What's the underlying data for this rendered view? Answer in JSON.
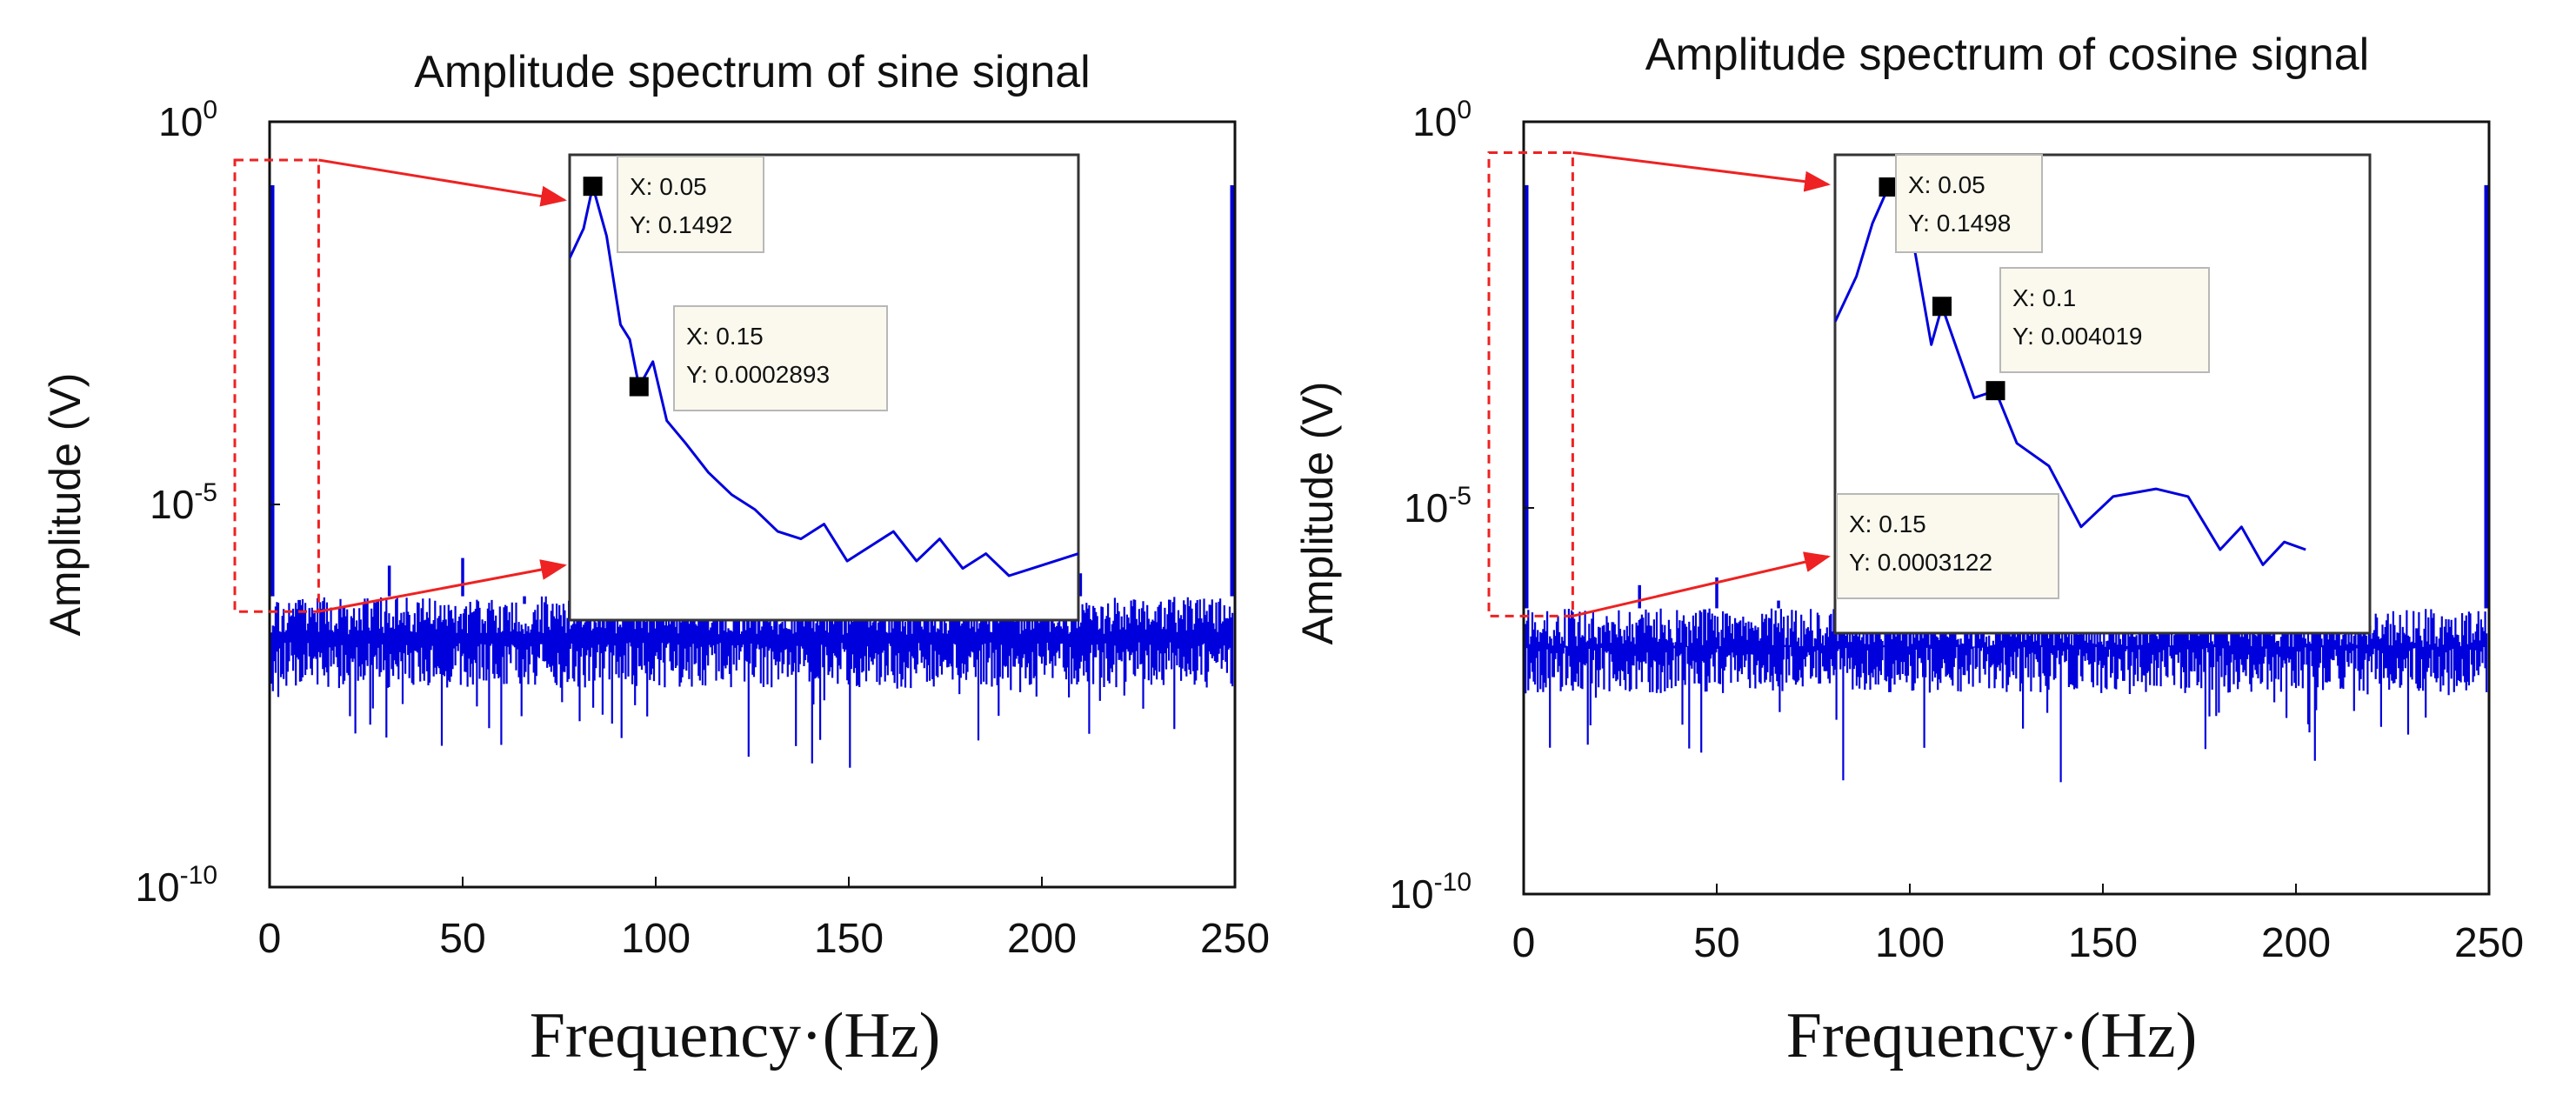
{
  "colors": {
    "spectrum": "#0000dd",
    "zoom_box": "#ee2222",
    "arrow": "#ee2222",
    "datatip_bg": "#fbf9ee",
    "datatip_border": "#b8b8b8",
    "marker": "#000000",
    "axes": "#111111"
  },
  "chart_data": [
    {
      "type": "line",
      "title": "Amplitude spectrum of sine signal",
      "xlabel": "Frequency·(Hz)",
      "ylabel": "Amplitude (V)",
      "xlim": [
        0,
        250
      ],
      "ylim_log10": [
        -10,
        0
      ],
      "yscale": "log",
      "xticks": [
        "0",
        "50",
        "100",
        "150",
        "200",
        "250"
      ],
      "yticks": [
        {
          "base": "10",
          "exp": "0",
          "log10": 0
        },
        {
          "base": "10",
          "exp": "-5",
          "log10": -5
        },
        {
          "base": "10",
          "exp": "-10",
          "log10": -10
        }
      ],
      "spectrum": {
        "peaks": [
          {
            "x": 0.05,
            "log10y": -0.83
          },
          {
            "x": 249.95,
            "log10y": -0.83
          }
        ],
        "spikes": [
          {
            "x": 31,
            "log10y": -5.8
          },
          {
            "x": 50,
            "log10y": -5.7
          },
          {
            "x": 66,
            "log10y": -6.3
          },
          {
            "x": 100,
            "log10y": -5.9
          },
          {
            "x": 200,
            "log10y": -6.2
          },
          {
            "x": 210,
            "log10y": -5.9
          }
        ],
        "noise_band_log10": [
          -7.4,
          -6.2
        ]
      },
      "zoom_region": {
        "x": [
          0,
          10
        ],
        "log10y": [
          -6.4,
          -0.5
        ]
      },
      "inset": {
        "xlim": [
          0,
          1.1
        ],
        "ylim_log10": [
          -6.7,
          -0.4
        ],
        "points": [
          [
            0.0,
            -1.8
          ],
          [
            0.03,
            -1.4
          ],
          [
            0.05,
            -0.826
          ],
          [
            0.08,
            -1.5
          ],
          [
            0.11,
            -2.7
          ],
          [
            0.13,
            -2.9
          ],
          [
            0.15,
            -3.539
          ],
          [
            0.18,
            -3.2
          ],
          [
            0.21,
            -4.0
          ],
          [
            0.25,
            -4.3
          ],
          [
            0.3,
            -4.7
          ],
          [
            0.35,
            -5.0
          ],
          [
            0.4,
            -5.2
          ],
          [
            0.45,
            -5.5
          ],
          [
            0.5,
            -5.6
          ],
          [
            0.55,
            -5.4
          ],
          [
            0.6,
            -5.9
          ],
          [
            0.65,
            -5.7
          ],
          [
            0.7,
            -5.5
          ],
          [
            0.75,
            -5.9
          ],
          [
            0.8,
            -5.6
          ],
          [
            0.85,
            -6.0
          ],
          [
            0.9,
            -5.8
          ],
          [
            0.95,
            -6.1
          ],
          [
            1.0,
            -6.0
          ],
          [
            1.05,
            -5.9
          ],
          [
            1.1,
            -5.8
          ]
        ],
        "datatips": [
          {
            "x_label": "X: 0.05",
            "y_label": "Y: 0.1492",
            "x": 0.05,
            "log10y": -0.826
          },
          {
            "x_label": "X: 0.15",
            "y_label": "Y: 0.0002893",
            "x": 0.15,
            "log10y": -3.539
          }
        ]
      }
    },
    {
      "type": "line",
      "title": "Amplitude spectrum of cosine signal",
      "xlabel": "Frequency·(Hz)",
      "ylabel": "Amplitude (V)",
      "xlim": [
        0,
        250
      ],
      "ylim_log10": [
        -10,
        0
      ],
      "yscale": "log",
      "xticks": [
        "0",
        "50",
        "100",
        "150",
        "200",
        "250"
      ],
      "yticks": [
        {
          "base": "10",
          "exp": "0",
          "log10": 0
        },
        {
          "base": "10",
          "exp": "-5",
          "log10": -5
        },
        {
          "base": "10",
          "exp": "-10",
          "log10": -10
        }
      ],
      "spectrum": {
        "peaks": [
          {
            "x": 0.05,
            "log10y": -0.82
          },
          {
            "x": 249.95,
            "log10y": -0.82
          }
        ],
        "spikes": [
          {
            "x": 30,
            "log10y": -6.0
          },
          {
            "x": 50,
            "log10y": -5.9
          },
          {
            "x": 66,
            "log10y": -6.2
          },
          {
            "x": 100,
            "log10y": -6.3
          },
          {
            "x": 210,
            "log10y": -6.0
          }
        ],
        "noise_band_log10": [
          -7.4,
          -6.3
        ]
      },
      "zoom_region": {
        "x": [
          0,
          10
        ],
        "log10y": [
          -6.4,
          -0.4
        ]
      },
      "inset": {
        "xlim": [
          0,
          0.5
        ],
        "ylim_log10": [
          -6.7,
          -0.4
        ],
        "points": [
          [
            0.0,
            -2.6
          ],
          [
            0.02,
            -2.0
          ],
          [
            0.035,
            -1.3
          ],
          [
            0.05,
            -0.824
          ],
          [
            0.06,
            -0.9
          ],
          [
            0.075,
            -1.7
          ],
          [
            0.09,
            -2.9
          ],
          [
            0.1,
            -2.396
          ],
          [
            0.115,
            -3.0
          ],
          [
            0.13,
            -3.6
          ],
          [
            0.15,
            -3.506
          ],
          [
            0.17,
            -4.2
          ],
          [
            0.2,
            -4.5
          ],
          [
            0.23,
            -5.3
          ],
          [
            0.26,
            -4.9
          ],
          [
            0.3,
            -4.8
          ],
          [
            0.33,
            -4.9
          ],
          [
            0.36,
            -5.6
          ],
          [
            0.38,
            -5.3
          ],
          [
            0.4,
            -5.8
          ],
          [
            0.42,
            -5.5
          ],
          [
            0.44,
            -5.6
          ]
        ],
        "datatips": [
          {
            "x_label": "X: 0.05",
            "y_label": "Y: 0.1498",
            "x": 0.05,
            "log10y": -0.824
          },
          {
            "x_label": "X: 0.1",
            "y_label": "Y: 0.004019",
            "x": 0.1,
            "log10y": -2.396
          },
          {
            "x_label": "X: 0.15",
            "y_label": "Y: 0.0003122",
            "x": 0.15,
            "log10y": -3.506
          }
        ]
      }
    }
  ]
}
